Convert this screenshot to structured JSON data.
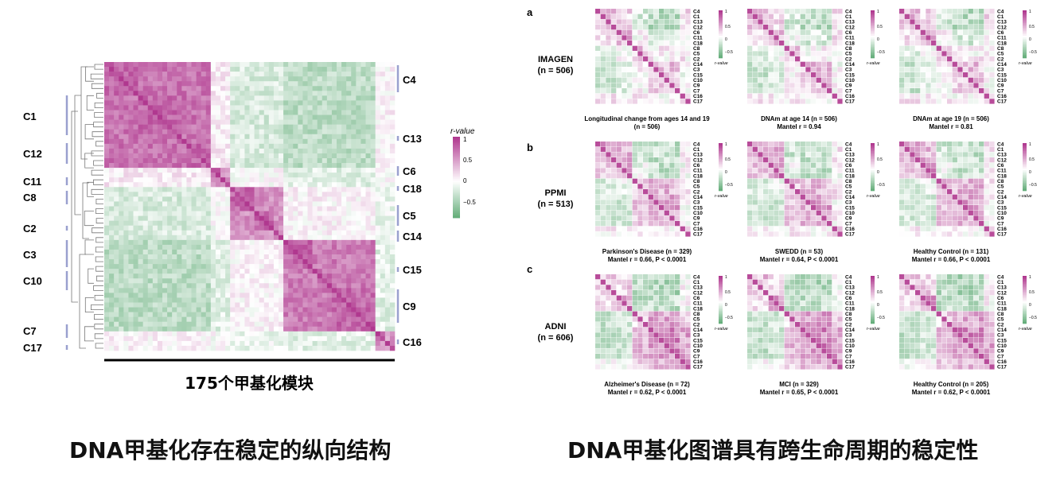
{
  "left": {
    "module_labels_left": [
      "C1",
      "C12",
      "C11",
      "C8",
      "C2",
      "C3",
      "C10",
      "C7",
      "C17"
    ],
    "module_labels_right": [
      "C4",
      "C13",
      "C6",
      "C18",
      "C5",
      "C14",
      "C15",
      "C9",
      "C16"
    ],
    "colorbar": {
      "title": "r-value",
      "ticks": [
        "1",
        "0.5",
        "0",
        "−0.5"
      ]
    },
    "x_label": "175个甲基化模块",
    "caption": "DNA甲基化存在稳定的纵向结构"
  },
  "right": {
    "caption": "DNA甲基化图谱具有跨生命周期的稳定性",
    "module_order": [
      "C4",
      "C1",
      "C13",
      "C12",
      "C6",
      "C11",
      "C18",
      "C8",
      "C5",
      "C2",
      "C14",
      "C3",
      "C15",
      "C10",
      "C9",
      "C7",
      "C16",
      "C17"
    ],
    "colorbar_ticks_ab": [
      "1",
      "0.5",
      "0",
      "−0.5"
    ],
    "colorbar_ticks_c": [
      "1",
      "0.5",
      "0",
      "−0.5"
    ],
    "colorbar_label": "r-value",
    "rows": [
      {
        "letter": "a",
        "cohort": "IMAGEN",
        "n": "(n = 506)",
        "panels": [
          {
            "cap1": "Longitudinal change from ages 14 and 19",
            "cap2": "(n = 506)"
          },
          {
            "cap1": "DNAm at age 14 (n = 506)",
            "cap2": "Mantel r = 0.94"
          },
          {
            "cap1": "DNAm at age 19 (n = 506)",
            "cap2": "Mantel r = 0.81"
          }
        ]
      },
      {
        "letter": "b",
        "cohort": "PPMI",
        "n": "(n = 513)",
        "panels": [
          {
            "cap1": "Parkinson's Disease (n = 329)",
            "cap2": "Mantel r = 0.66, P < 0.0001"
          },
          {
            "cap1": "SWEDD (n = 53)",
            "cap2": "Mantel r = 0.64, P < 0.0001"
          },
          {
            "cap1": "Healthy Control (n = 131)",
            "cap2": "Mantel r = 0.66, P < 0.0001"
          }
        ]
      },
      {
        "letter": "c",
        "cohort": "ADNI",
        "n": "(n = 606)",
        "panels": [
          {
            "cap1": "Alzheimer's Disease (n = 72)",
            "cap2": "Mantel r = 0.62, P < 0.0001"
          },
          {
            "cap1": "MCI (n = 329)",
            "cap2": "Mantel r = 0.65, P < 0.0001"
          },
          {
            "cap1": "Healthy Control (n = 205)",
            "cap2": "Mantel r = 0.62, P < 0.0001"
          }
        ]
      }
    ]
  },
  "colors": {
    "positive": "#b0388f",
    "neutral": "#ffffff",
    "negative": "#3f9a5a",
    "bracket": "#9aa0cf"
  }
}
